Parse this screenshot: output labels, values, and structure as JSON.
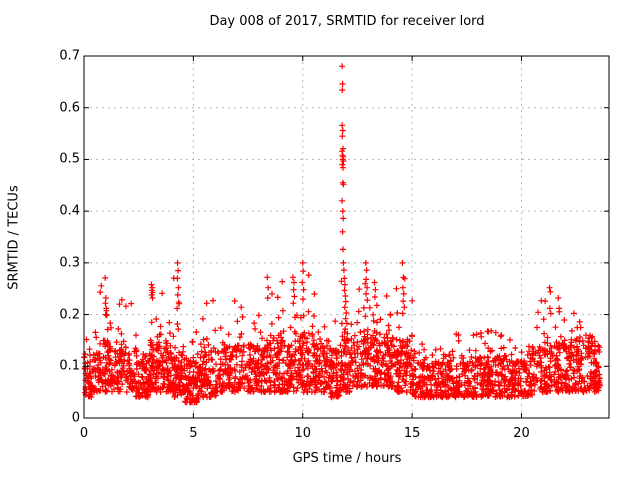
{
  "figure": {
    "background": "#ffffff",
    "frame_color": "#000000",
    "grid_color": "#b3b3b3"
  },
  "chart_data": {
    "type": "scatter",
    "title": "Day 008 of 2017, SRMTID for receiver lord",
    "xlabel": "GPS time / hours",
    "ylabel": "SRMTID / TECUs",
    "xlim": [
      0,
      24
    ],
    "ylim": [
      0,
      0.7
    ],
    "xticks": [
      {
        "v": 0,
        "label": "0"
      },
      {
        "v": 5,
        "label": "5"
      },
      {
        "v": 10,
        "label": "10"
      },
      {
        "v": 15,
        "label": "15"
      },
      {
        "v": 20,
        "label": "20"
      }
    ],
    "yticks": [
      {
        "v": 0,
        "label": "0"
      },
      {
        "v": 0.1,
        "label": "0.1"
      },
      {
        "v": 0.2,
        "label": "0.2"
      },
      {
        "v": 0.3,
        "label": "0.3"
      },
      {
        "v": 0.4,
        "label": "0.4"
      },
      {
        "v": 0.5,
        "label": "0.5"
      },
      {
        "v": 0.6,
        "label": "0.6"
      },
      {
        "v": 0.7,
        "label": "0.7"
      }
    ],
    "grid": true,
    "legend": "none",
    "marker": {
      "shape": "plus",
      "color": "#ff0000",
      "half_size": 3,
      "stroke_width": 1.2
    },
    "series_name": "SRMTID",
    "generator": {
      "seed": 20170081,
      "tail_fraction": 0.09,
      "band_exponent": 1.3,
      "tail_exponent": 2.0,
      "segments_format": [
        "hour_start",
        "hour_end",
        "band_low",
        "band_high",
        "peak",
        "n_points"
      ],
      "segments": [
        [
          0.0,
          0.5,
          0.04,
          0.12,
          0.16,
          60
        ],
        [
          0.5,
          1.2,
          0.05,
          0.15,
          0.26,
          90
        ],
        [
          1.2,
          2.2,
          0.05,
          0.14,
          0.23,
          110
        ],
        [
          2.2,
          3.0,
          0.04,
          0.12,
          0.18,
          90
        ],
        [
          3.0,
          3.6,
          0.05,
          0.15,
          0.25,
          80
        ],
        [
          3.6,
          4.1,
          0.05,
          0.14,
          0.24,
          70
        ],
        [
          4.1,
          4.6,
          0.04,
          0.13,
          0.28,
          70
        ],
        [
          4.6,
          5.2,
          0.03,
          0.11,
          0.2,
          80
        ],
        [
          5.2,
          6.2,
          0.04,
          0.13,
          0.23,
          110
        ],
        [
          6.2,
          7.2,
          0.05,
          0.14,
          0.25,
          110
        ],
        [
          7.2,
          8.2,
          0.05,
          0.14,
          0.24,
          110
        ],
        [
          8.2,
          9.0,
          0.05,
          0.15,
          0.26,
          100
        ],
        [
          9.0,
          9.8,
          0.05,
          0.15,
          0.27,
          100
        ],
        [
          9.8,
          10.4,
          0.05,
          0.16,
          0.28,
          80
        ],
        [
          10.4,
          11.2,
          0.05,
          0.15,
          0.25,
          100
        ],
        [
          11.2,
          11.7,
          0.04,
          0.13,
          0.2,
          70
        ],
        [
          11.7,
          12.2,
          0.05,
          0.15,
          0.28,
          70
        ],
        [
          12.2,
          13.4,
          0.06,
          0.17,
          0.28,
          140
        ],
        [
          13.4,
          14.2,
          0.06,
          0.16,
          0.25,
          100
        ],
        [
          14.2,
          15.0,
          0.05,
          0.15,
          0.28,
          100
        ],
        [
          15.0,
          16.0,
          0.04,
          0.11,
          0.15,
          110
        ],
        [
          16.0,
          17.0,
          0.04,
          0.11,
          0.14,
          110
        ],
        [
          17.0,
          18.5,
          0.04,
          0.12,
          0.18,
          160
        ],
        [
          18.5,
          19.5,
          0.04,
          0.12,
          0.17,
          110
        ],
        [
          19.5,
          20.5,
          0.04,
          0.11,
          0.14,
          110
        ],
        [
          20.5,
          21.8,
          0.05,
          0.14,
          0.24,
          140
        ],
        [
          21.8,
          23.0,
          0.05,
          0.15,
          0.22,
          130
        ],
        [
          23.0,
          23.6,
          0.05,
          0.14,
          0.16,
          80
        ]
      ]
    },
    "highlight_points": [
      [
        11.8,
        0.68
      ],
      [
        11.82,
        0.646
      ],
      [
        11.81,
        0.634
      ],
      [
        11.8,
        0.566
      ],
      [
        11.83,
        0.556
      ],
      [
        11.81,
        0.545
      ],
      [
        11.84,
        0.521
      ],
      [
        11.8,
        0.516
      ],
      [
        11.82,
        0.508
      ],
      [
        11.85,
        0.505
      ],
      [
        11.83,
        0.5
      ],
      [
        11.86,
        0.497
      ],
      [
        11.81,
        0.49
      ],
      [
        11.84,
        0.484
      ],
      [
        11.83,
        0.455
      ],
      [
        11.86,
        0.452
      ],
      [
        11.8,
        0.42
      ],
      [
        11.83,
        0.4
      ],
      [
        11.85,
        0.386
      ],
      [
        11.82,
        0.36
      ],
      [
        11.84,
        0.326
      ],
      [
        11.86,
        0.3
      ],
      [
        11.88,
        0.286
      ],
      [
        11.9,
        0.27
      ],
      [
        11.93,
        0.258
      ],
      [
        11.91,
        0.247
      ],
      [
        11.95,
        0.236
      ],
      [
        11.97,
        0.225
      ],
      [
        11.92,
        0.214
      ],
      [
        11.99,
        0.203
      ],
      [
        11.96,
        0.192
      ],
      [
        12.02,
        0.183
      ],
      [
        11.94,
        0.172
      ],
      [
        12.04,
        0.163
      ],
      [
        11.98,
        0.152
      ],
      [
        4.28,
        0.3
      ],
      [
        4.3,
        0.285
      ],
      [
        4.27,
        0.27
      ],
      [
        4.32,
        0.252
      ],
      [
        4.29,
        0.238
      ],
      [
        4.33,
        0.224
      ],
      [
        4.26,
        0.212
      ],
      [
        3.08,
        0.258
      ],
      [
        3.12,
        0.252
      ],
      [
        3.1,
        0.247
      ],
      [
        3.14,
        0.243
      ],
      [
        3.09,
        0.238
      ],
      [
        3.13,
        0.232
      ],
      [
        0.97,
        0.271
      ],
      [
        1.0,
        0.232
      ],
      [
        0.98,
        0.222
      ],
      [
        1.02,
        0.212
      ],
      [
        0.99,
        0.2
      ],
      [
        9.55,
        0.272
      ],
      [
        9.6,
        0.262
      ],
      [
        9.58,
        0.248
      ],
      [
        9.62,
        0.235
      ],
      [
        9.57,
        0.222
      ],
      [
        10.0,
        0.3
      ],
      [
        10.02,
        0.284
      ],
      [
        9.98,
        0.262
      ],
      [
        10.04,
        0.248
      ],
      [
        10.01,
        0.23
      ],
      [
        12.88,
        0.3
      ],
      [
        12.92,
        0.286
      ],
      [
        12.9,
        0.268
      ],
      [
        12.94,
        0.252
      ],
      [
        12.89,
        0.24
      ],
      [
        12.95,
        0.228
      ],
      [
        13.28,
        0.262
      ],
      [
        13.32,
        0.248
      ],
      [
        13.3,
        0.234
      ],
      [
        14.56,
        0.3
      ],
      [
        14.6,
        0.272
      ],
      [
        14.58,
        0.252
      ],
      [
        14.62,
        0.24
      ],
      [
        14.59,
        0.226
      ],
      [
        14.64,
        0.214
      ],
      [
        14.57,
        0.202
      ],
      [
        21.28,
        0.252
      ],
      [
        21.32,
        0.244
      ],
      [
        21.3,
        0.212
      ],
      [
        21.34,
        0.202
      ],
      [
        21.68,
        0.232
      ],
      [
        21.72,
        0.212
      ],
      [
        8.38,
        0.272
      ],
      [
        8.42,
        0.252
      ],
      [
        8.4,
        0.232
      ],
      [
        23.2,
        0.155
      ],
      [
        23.35,
        0.148
      ],
      [
        23.5,
        0.14
      ]
    ]
  }
}
